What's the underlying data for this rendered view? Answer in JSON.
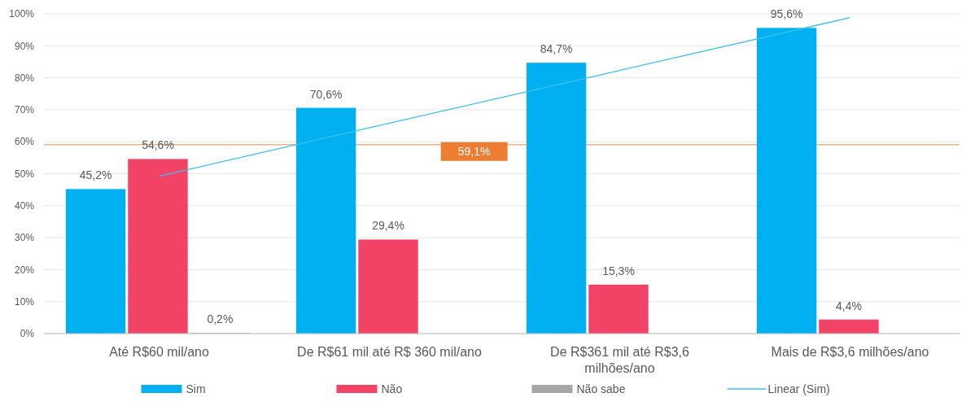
{
  "chart_data": {
    "type": "bar",
    "categories": [
      "Até R$60 mil/ano",
      "De R$61 mil até R$ 360 mil/ano",
      "De R$361 mil até R$3,6 milhões/ano",
      "Mais de R$3,6 milhões/ano"
    ],
    "series": [
      {
        "name": "Sim",
        "color": "#00b0f0",
        "values": [
          45.2,
          70.6,
          84.7,
          95.6
        ],
        "value_labels": [
          "45,2%",
          "70,6%",
          "84,7%",
          "95,6%"
        ]
      },
      {
        "name": "Não",
        "color": "#f24266",
        "values": [
          54.6,
          29.4,
          15.3,
          4.4
        ],
        "value_labels": [
          "54,6%",
          "29,4%",
          "15,3%",
          "4,4%"
        ]
      },
      {
        "name": "Não sabe",
        "color": "#a6a6a6",
        "values": [
          0.2,
          null,
          null,
          null
        ],
        "value_labels": [
          "0,2%",
          null,
          null,
          null
        ]
      },
      {
        "name": "Linear (Sim)",
        "type": "line",
        "color": "#3cc0f0",
        "values": [
          49.2,
          65.8,
          82.3,
          98.8
        ]
      }
    ],
    "ylim": [
      0,
      100
    ],
    "yticks": [
      {
        "value": 0,
        "label": "0%"
      },
      {
        "value": 10,
        "label": "10%"
      },
      {
        "value": 20,
        "label": "20%"
      },
      {
        "value": 30,
        "label": "30%"
      },
      {
        "value": 40,
        "label": "40%"
      },
      {
        "value": 50,
        "label": "50%"
      },
      {
        "value": 60,
        "label": "60%"
      },
      {
        "value": 70,
        "label": "70%"
      },
      {
        "value": 80,
        "label": "80%"
      },
      {
        "value": 90,
        "label": "90%"
      },
      {
        "value": 100,
        "label": "100%"
      }
    ],
    "ref_lines": [
      {
        "axis": "y",
        "value": 59.1,
        "label": "59,1%",
        "color": "#f4b183"
      }
    ],
    "grid": "y",
    "legend": "bottom"
  }
}
